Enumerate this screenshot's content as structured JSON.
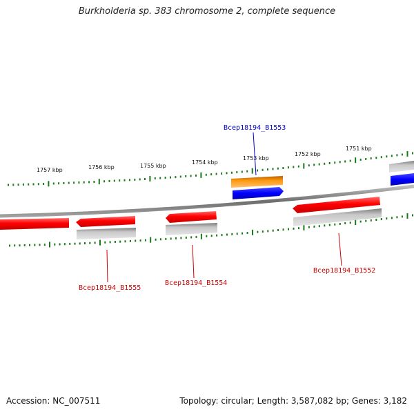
{
  "title": "Burkholderia sp. 383 chromosome 2, complete sequence",
  "footer": {
    "accession": "Accession: NC_007511",
    "summary": "Topology: circular; Length: 3,587,082 bp; Genes: 3,182"
  },
  "scale_labels": [
    "1757 kbp",
    "1756 kbp",
    "1755 kbp",
    "1754 kbp",
    "1753 kbp",
    "1752 kbp",
    "1751 kbp"
  ],
  "gene_labels": {
    "b1553": "Bcep18194_B1553",
    "b1555": "Bcep18194_B1555",
    "b1554": "Bcep18194_B1554",
    "b1552": "Bcep18194_B1552"
  },
  "colors": {
    "cds_forward": "#ff0000",
    "cds_reverse": "#ff0000",
    "gene_grey": "#b8b8b8",
    "orange_feature": "#ff8c00",
    "blue_feature": "#0000ff",
    "tick_green": "#1a7a1a",
    "backbone": "#888888",
    "label_blue": "#0000cc",
    "label_red": "#cc0000"
  }
}
